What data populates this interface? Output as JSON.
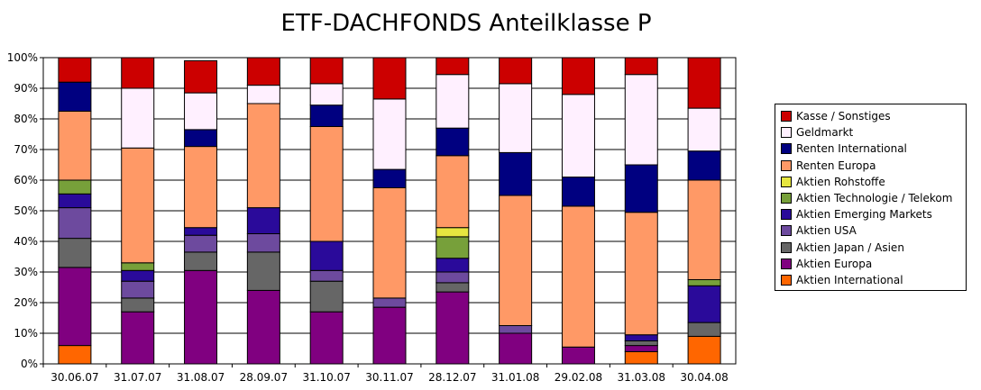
{
  "chart_data": {
    "type": "bar",
    "stacked": true,
    "title": "ETF-DACHFONDS Anteilklasse P",
    "xlabel": "",
    "ylabel": "",
    "ylim": [
      0,
      100
    ],
    "yticks": [
      "0%",
      "10%",
      "20%",
      "30%",
      "40%",
      "50%",
      "60%",
      "70%",
      "80%",
      "90%",
      "100%"
    ],
    "grid": true,
    "legend_position": "right",
    "categories": [
      "30.06.07",
      "31.07.07",
      "31.08.07",
      "28.09.07",
      "31.10.07",
      "30.11.07",
      "28.12.07",
      "31.01.08",
      "29.02.08",
      "31.03.08",
      "30.04.08"
    ],
    "series": [
      {
        "name": "Aktien International",
        "color": "#ff6600",
        "values": [
          6,
          0,
          0,
          0,
          0,
          0,
          0,
          0,
          0,
          4,
          9
        ]
      },
      {
        "name": "Aktien Europa",
        "color": "#800080",
        "values": [
          25.5,
          17,
          30.5,
          24,
          17,
          18.5,
          23.5,
          10,
          5.5,
          2,
          0
        ]
      },
      {
        "name": "Aktien Japan / Asien",
        "color": "#666666",
        "values": [
          9.5,
          4.5,
          6,
          12.5,
          10,
          0,
          3,
          0,
          0,
          1.5,
          4.5
        ]
      },
      {
        "name": "Aktien USA",
        "color": "#6d4a9e",
        "values": [
          10,
          5.5,
          5.5,
          6,
          3.5,
          3,
          3.5,
          2.5,
          0,
          0,
          0
        ]
      },
      {
        "name": "Aktien Emerging Markets",
        "color": "#2a0a9a",
        "values": [
          4.5,
          3.5,
          2.5,
          8.5,
          9.5,
          0,
          4.5,
          0,
          0,
          2,
          12
        ]
      },
      {
        "name": "Aktien Technologie / Telekom",
        "color": "#77a03a",
        "values": [
          4.5,
          2.5,
          0,
          0,
          0,
          0,
          7,
          0,
          0,
          0,
          2
        ]
      },
      {
        "name": "Aktien Rohstoffe",
        "color": "#e6e640",
        "values": [
          0,
          0,
          0,
          0,
          0,
          0,
          3,
          0,
          0,
          0,
          0
        ]
      },
      {
        "name": "Renten Europa",
        "color": "#ff9966",
        "values": [
          22.5,
          37.5,
          26.5,
          34,
          37.5,
          36,
          23.5,
          42.5,
          46,
          40,
          32.5
        ]
      },
      {
        "name": "Renten International",
        "color": "#000080",
        "values": [
          9.5,
          0,
          5.5,
          0,
          7,
          6,
          9,
          14,
          9.5,
          15.5,
          9.5
        ]
      },
      {
        "name": "Geldmarkt",
        "color": "#fff0ff",
        "values": [
          0,
          19.5,
          12,
          6,
          7,
          23,
          17.5,
          22.5,
          27,
          29.5,
          14
        ]
      },
      {
        "name": "Kasse / Sonstiges",
        "color": "#cc0000",
        "values": [
          8,
          10,
          10.5,
          9,
          8.5,
          13.5,
          5.5,
          8.5,
          12,
          5.5,
          16.5
        ]
      }
    ]
  }
}
